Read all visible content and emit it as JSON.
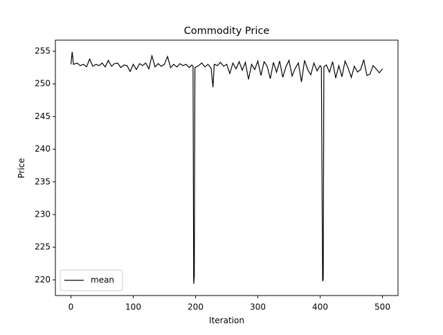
{
  "chart_data": {
    "type": "line",
    "title": "Commodity Price",
    "x_label": "Iteration",
    "y_label": "Price",
    "x": [
      0,
      2,
      4,
      10,
      15,
      20,
      25,
      30,
      35,
      40,
      45,
      50,
      55,
      60,
      65,
      70,
      75,
      80,
      85,
      90,
      95,
      100,
      105,
      110,
      115,
      120,
      125,
      130,
      135,
      140,
      145,
      150,
      155,
      160,
      165,
      170,
      175,
      180,
      185,
      190,
      194,
      196,
      197,
      198,
      199,
      205,
      210,
      215,
      220,
      225,
      228,
      230,
      235,
      240,
      245,
      250,
      255,
      260,
      265,
      270,
      275,
      280,
      285,
      290,
      295,
      300,
      305,
      310,
      315,
      320,
      325,
      330,
      335,
      340,
      345,
      350,
      355,
      360,
      365,
      370,
      375,
      380,
      385,
      390,
      395,
      400,
      402,
      404,
      405,
      406,
      410,
      415,
      420,
      425,
      430,
      435,
      440,
      445,
      450,
      455,
      460,
      465,
      470,
      475,
      480,
      485,
      490,
      495,
      500
    ],
    "series": [
      {
        "name": "mean",
        "color": "#000000",
        "values": [
          253,
          254.9,
          253,
          253.2,
          252.8,
          253,
          252.6,
          253.8,
          252.7,
          253,
          252.8,
          253.2,
          252.6,
          253.6,
          252.7,
          253.1,
          253.2,
          252.5,
          252.9,
          252.8,
          251.9,
          253,
          252.2,
          253.1,
          252.8,
          253.2,
          252.3,
          254.3,
          252.6,
          253.1,
          252.7,
          253,
          254.2,
          252.5,
          253,
          252.6,
          253.1,
          252.8,
          253,
          252.5,
          252.9,
          252.7,
          219.4,
          220.6,
          252.5,
          252.8,
          253.2,
          252.6,
          253,
          252.4,
          249.5,
          253,
          252.8,
          253.3,
          252.7,
          253,
          251.6,
          253.2,
          252.3,
          253.4,
          252.1,
          253.3,
          250.7,
          253,
          252.2,
          253.5,
          251.3,
          253.4,
          252.7,
          250.8,
          253.3,
          251.8,
          253.5,
          251,
          252.6,
          253.6,
          251.2,
          252.4,
          253.2,
          250.3,
          253.6,
          252.2,
          251.4,
          253.2,
          252,
          252.8,
          252.5,
          219.8,
          220.1,
          252.6,
          252.9,
          251.8,
          253.4,
          250.9,
          252.8,
          251.1,
          253.5,
          252.4,
          251,
          252.7,
          251.8,
          252.2,
          253.7,
          251.3,
          251.5,
          252.8,
          252.3,
          251.7,
          252.3
        ]
      }
    ],
    "xlim": [
      -25,
      525
    ],
    "ylim": [
      217.6,
      256.7
    ],
    "xticks": [
      0,
      100,
      200,
      300,
      400,
      500
    ],
    "yticks": [
      220,
      225,
      230,
      235,
      240,
      245,
      250,
      255
    ],
    "legend": "lower left"
  }
}
